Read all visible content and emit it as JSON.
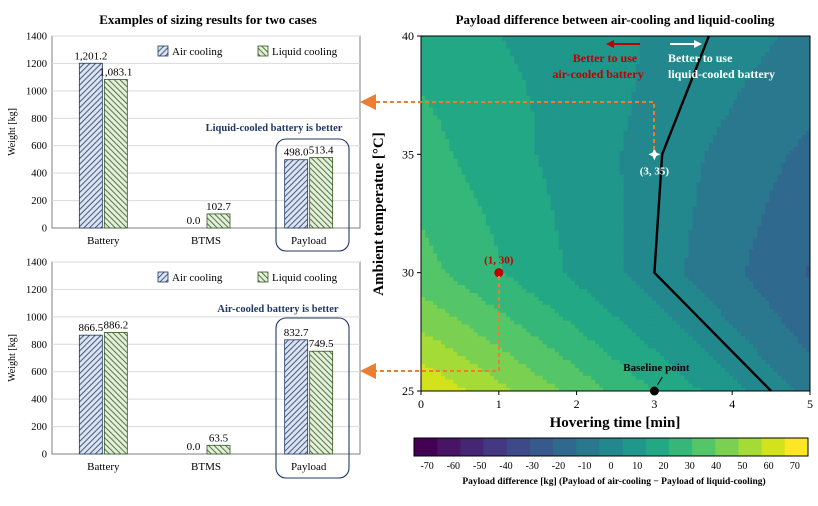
{
  "chart_data": [
    {
      "type": "bar",
      "title": "Examples of sizing results for two cases",
      "ylabel": "Weight [kg]",
      "ylim": [
        0,
        1400
      ],
      "yticks": [
        "0",
        "200",
        "400",
        "600",
        "800",
        "1000",
        "1200",
        "1400"
      ],
      "categories": [
        "Battery",
        "BTMS",
        "Payload"
      ],
      "series": [
        {
          "name": "Air cooling",
          "values": [
            1201.2,
            0.0,
            498.0
          ],
          "labels": [
            "1,201.2",
            "0.0",
            "498.0"
          ]
        },
        {
          "name": "Liquid cooling",
          "values": [
            1083.1,
            102.7,
            513.4
          ],
          "labels": [
            "1,083.1",
            "102.7",
            "513.4"
          ]
        }
      ],
      "annotation": "Liquid-cooled battery is better",
      "legend_position": "top-right"
    },
    {
      "type": "bar",
      "ylabel": "Weight [kg]",
      "ylim": [
        0,
        1400
      ],
      "yticks": [
        "0",
        "200",
        "400",
        "600",
        "800",
        "1000",
        "1200",
        "1400"
      ],
      "categories": [
        "Battery",
        "BTMS",
        "Payload"
      ],
      "series": [
        {
          "name": "Air cooling",
          "values": [
            866.5,
            0.0,
            832.7
          ],
          "labels": [
            "866.5",
            "0.0",
            "832.7"
          ]
        },
        {
          "name": "Liquid cooling",
          "values": [
            886.2,
            63.5,
            749.5
          ],
          "labels": [
            "886.2",
            "63.5",
            "749.5"
          ]
        }
      ],
      "annotation": "Air-cooled battery is better",
      "legend_position": "top-right"
    },
    {
      "type": "heatmap",
      "title": "Payload difference between air-cooling and liquid-cooling",
      "xlabel": "Hovering time [min]",
      "ylabel": "Ambient temperatue [°C]",
      "xlim": [
        0,
        5
      ],
      "ylim": [
        25,
        40
      ],
      "xticks": [
        "0",
        "1",
        "2",
        "3",
        "4",
        "5"
      ],
      "yticks": [
        "25",
        "30",
        "35",
        "40"
      ],
      "colorbar": {
        "label": "Payload difference [kg] (Payload of air-cooling − Payload of liquid-cooling)",
        "min": -75,
        "max": 75,
        "ticks": [
          "-70",
          "-60",
          "-50",
          "-40",
          "-30",
          "-20",
          "-10",
          "0",
          "10",
          "20",
          "30",
          "40",
          "50",
          "60",
          "70"
        ],
        "colors": [
          "#440154",
          "#471466",
          "#472575",
          "#443883",
          "#3e4989",
          "#37598c",
          "#30698e",
          "#2a788e",
          "#23888e",
          "#1f978b",
          "#22a884",
          "#35b779",
          "#54c568",
          "#7ad151",
          "#a5db36",
          "#d2e21b",
          "#fde725"
        ]
      },
      "zero_boundary": [
        [
          3.7,
          40
        ],
        [
          3.1,
          35
        ],
        [
          3.0,
          30
        ],
        [
          4.5,
          25
        ]
      ],
      "points": [
        {
          "label": "(1, 30)",
          "x": 1,
          "y": 30,
          "color": "#c00000"
        },
        {
          "label": "(3, 35)",
          "x": 3,
          "y": 35,
          "color": "#ffffff"
        },
        {
          "label": "Baseline point",
          "x": 3,
          "y": 25,
          "color": "#000000"
        }
      ],
      "annotations": {
        "left": [
          "Better to use",
          "air-cooled battery"
        ],
        "right": [
          "Better to use",
          "liquid-cooled battery"
        ]
      },
      "accent_colors": {
        "air_text": "#c00000",
        "connector": "#ed7d31",
        "panel_frame": "#203864"
      }
    }
  ]
}
